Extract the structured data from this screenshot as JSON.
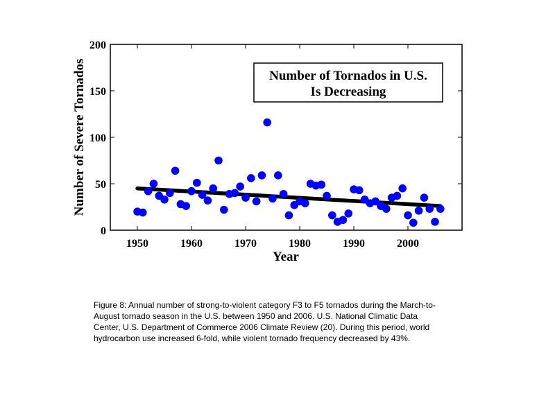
{
  "chart_data": {
    "type": "scatter",
    "title": "",
    "xlabel": "Year",
    "ylabel": "Number of Severe Tornados",
    "xlim": [
      1945,
      2010
    ],
    "ylim": [
      0,
      200
    ],
    "xticks": [
      1950,
      1960,
      1970,
      1980,
      1990,
      2000
    ],
    "yticks": [
      0,
      50,
      100,
      150,
      200
    ],
    "grid": false,
    "annotation": {
      "lines": [
        "Number of Tornados in U.S.",
        "Is Decreasing"
      ],
      "placement": "top-right"
    },
    "series": [
      {
        "color": "#0000ff",
        "x": [
          1950,
          1951,
          1952,
          1953,
          1954,
          1955,
          1956,
          1957,
          1958,
          1959,
          1960,
          1961,
          1962,
          1963,
          1964,
          1965,
          1966,
          1967,
          1968,
          1969,
          1970,
          1971,
          1972,
          1973,
          1974,
          1975,
          1976,
          1977,
          1978,
          1979,
          1980,
          1981,
          1982,
          1983,
          1984,
          1985,
          1986,
          1987,
          1988,
          1989,
          1990,
          1991,
          1992,
          1993,
          1994,
          1995,
          1996,
          1997,
          1998,
          1999,
          2000,
          2001,
          2002,
          2003,
          2004,
          2005,
          2006
        ],
        "y": [
          20,
          19,
          42,
          50,
          37,
          33,
          40,
          64,
          28,
          26,
          42,
          51,
          38,
          32,
          45,
          75,
          22,
          39,
          40,
          47,
          35,
          56,
          31,
          59,
          116,
          34,
          59,
          39,
          16,
          27,
          31,
          29,
          50,
          48,
          49,
          37,
          16,
          9,
          11,
          18,
          44,
          43,
          33,
          29,
          31,
          26,
          23,
          35,
          37,
          45,
          16,
          8,
          21,
          35,
          23,
          9,
          23
        ]
      }
    ],
    "trend_line": {
      "color": "#000000",
      "x": [
        1950,
        2006
      ],
      "y": [
        45,
        26
      ]
    }
  },
  "caption": {
    "lines": [
      "Figure 8: Annual number of strong-to-violent category F3 to F5 tornados during the March-to-",
      "August tornado season in the U.S. between 1950 and 2006. U.S. National Climatic Data",
      "Center, U.S. Department of Commerce 2006 Climate Review (20). During this period, world",
      "hydrocarbon use increased 6-fold, while violent tornado frequency decreased by 43%."
    ]
  }
}
